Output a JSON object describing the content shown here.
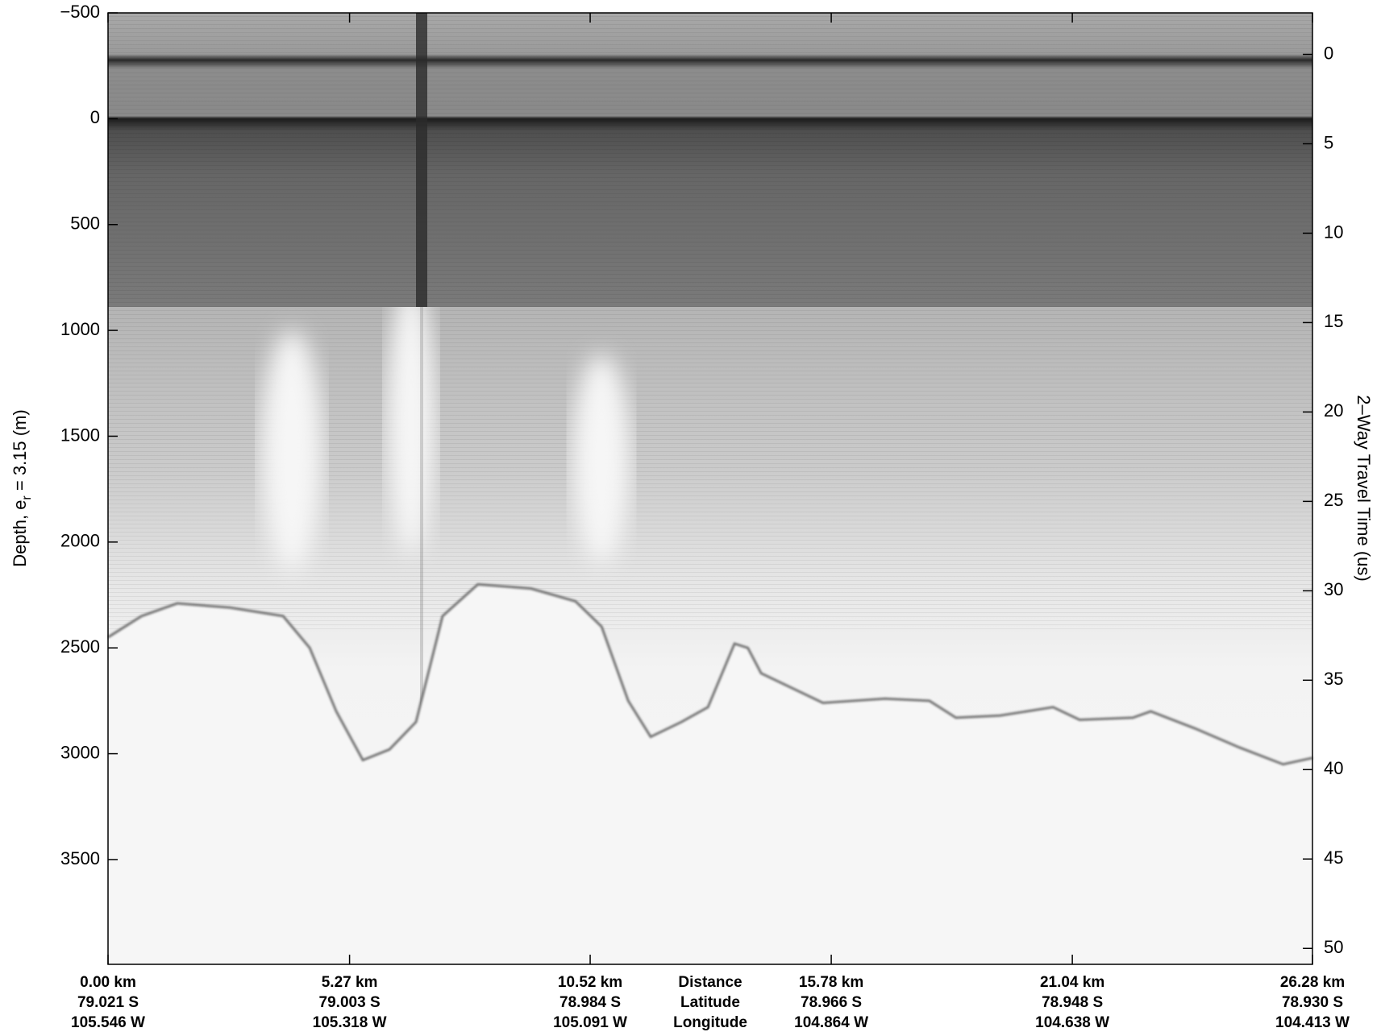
{
  "chart_data": {
    "type": "echogram",
    "ylabel": "Depth, e",
    "ylabel_subscript": "r",
    "ylabel_rest": " = 3.15 (m)",
    "y2label": "2–Way Travel Time (us)",
    "ylim": [
      -500,
      3995
    ],
    "yticks": [
      {
        "value": -500,
        "label": "−500"
      },
      0,
      500,
      1000,
      1500,
      2000,
      2500,
      3000,
      3500
    ],
    "y2lim": [
      -2.32,
      50.89
    ],
    "y2ticks": [
      0,
      5,
      10,
      15,
      20,
      25,
      30,
      35,
      40,
      45,
      50
    ],
    "xlim": [
      0,
      26.28
    ],
    "xticks": [
      {
        "value": 0,
        "label": "0.00 km"
      },
      {
        "value": 5.27,
        "label": "5.27 km"
      },
      {
        "value": 10.52,
        "label": "10.52 km"
      },
      {
        "value": 15.78,
        "label": "15.78 km"
      },
      {
        "value": 21.04,
        "label": "21.04 km"
      },
      {
        "value": 26.28,
        "label": "26.28 km"
      }
    ],
    "xtick_latitudes": [
      "79.021 S",
      "79.003 S",
      "78.984 S",
      "78.966 S",
      "78.948 S",
      "78.930 S"
    ],
    "xtick_longitudes": [
      "105.546 W",
      "105.318 W",
      "105.091 W",
      "104.864 W",
      "104.638 W",
      "104.413 W"
    ],
    "x_row_labels": [
      "Distance",
      "Latitude",
      "Longitude"
    ],
    "bed_trace": {
      "color": "#4a4a4a",
      "x": [
        0,
        0.73,
        1.51,
        2.66,
        3.82,
        4.4,
        4.98,
        5.56,
        6.14,
        6.72,
        7.3,
        8.07,
        9.23,
        10.2,
        10.77,
        11.35,
        11.84,
        12.51,
        13.09,
        13.67,
        13.96,
        14.25,
        15.6,
        16.95,
        17.92,
        18.5,
        19.46,
        20.62,
        21.2,
        22.36,
        22.75,
        23.71,
        24.68,
        25.64,
        26.28
      ],
      "values": [
        2450,
        2350,
        2290,
        2310,
        2350,
        2500,
        2800,
        3030,
        2980,
        2850,
        2350,
        2200,
        2220,
        2280,
        2400,
        2750,
        2920,
        2850,
        2780,
        2480,
        2500,
        2620,
        2760,
        2740,
        2750,
        2830,
        2820,
        2780,
        2840,
        2830,
        2800,
        2880,
        2970,
        3050,
        3020
      ]
    }
  }
}
